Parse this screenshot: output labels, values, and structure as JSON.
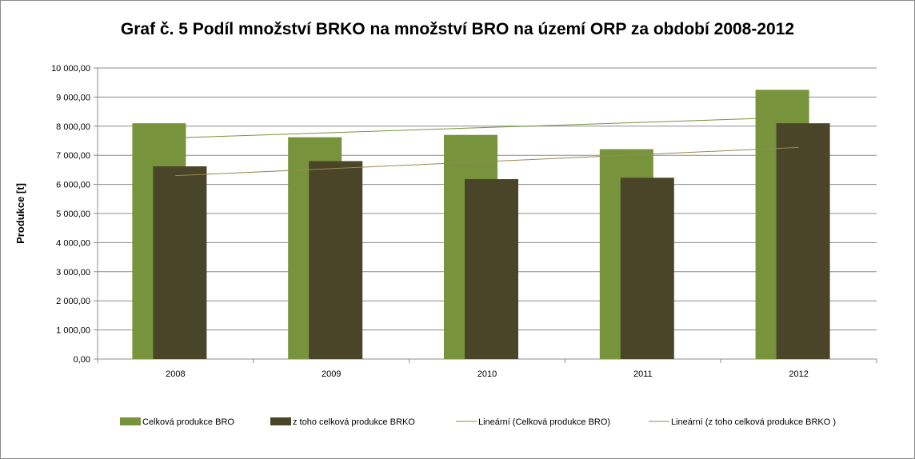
{
  "chart_data": {
    "type": "bar",
    "title": "Graf č. 5 Podíl množství BRKO na množství BRO na území ORP za období 2008-2012",
    "xlabel": "",
    "ylabel": "Produkce [t]",
    "ylim": [
      0,
      10000
    ],
    "yticks": [
      0,
      1000,
      2000,
      3000,
      4000,
      5000,
      6000,
      7000,
      8000,
      9000,
      10000
    ],
    "ytick_labels": [
      "0,00",
      "1 000,00",
      "2 000,00",
      "3 000,00",
      "4 000,00",
      "5 000,00",
      "6 000,00",
      "7 000,00",
      "8 000,00",
      "9 000,00",
      "10 000,00"
    ],
    "categories": [
      "2008",
      "2009",
      "2010",
      "2011",
      "2012"
    ],
    "series": [
      {
        "name": "Celková produkce BRO",
        "values": [
          8100,
          7620,
          7700,
          7210,
          9250
        ],
        "color": "#77933c"
      },
      {
        "name": "z toho celková produkce BRKO",
        "values": [
          6620,
          6800,
          6180,
          6230,
          8100
        ],
        "color": "#4a4428"
      }
    ],
    "trendlines": [
      {
        "name": "Lineární (Celková produkce BRO)",
        "start": 7600,
        "end": 8310,
        "color": "#77933c"
      },
      {
        "name": "Lineární (z toho celková produkce BRKO )",
        "start": 6300,
        "end": 7270,
        "color": "#948a54"
      }
    ],
    "grid": true,
    "legend_position": "bottom"
  }
}
